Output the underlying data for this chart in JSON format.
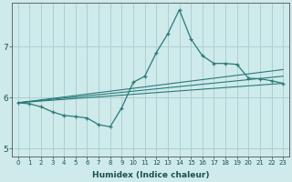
{
  "xlabel": "Humidex (Indice chaleur)",
  "background_color": "#ceeaea",
  "grid_color": "#acd0d0",
  "line_color": "#2a7a7a",
  "xlim": [
    -0.5,
    23.5
  ],
  "ylim": [
    4.85,
    7.85
  ],
  "yticks": [
    5,
    6,
    7
  ],
  "xticks": [
    0,
    1,
    2,
    3,
    4,
    5,
    6,
    7,
    8,
    9,
    10,
    11,
    12,
    13,
    14,
    15,
    16,
    17,
    18,
    19,
    20,
    21,
    22,
    23
  ],
  "main_x": [
    0,
    1,
    2,
    3,
    4,
    5,
    6,
    7,
    8,
    9,
    10,
    11,
    12,
    13,
    14,
    15,
    16,
    17,
    18,
    19,
    20,
    21,
    22,
    23
  ],
  "main_y": [
    5.9,
    5.88,
    5.82,
    5.72,
    5.65,
    5.63,
    5.6,
    5.47,
    5.43,
    5.8,
    6.3,
    6.42,
    6.88,
    7.25,
    7.72,
    7.15,
    6.82,
    6.67,
    6.67,
    6.65,
    6.38,
    6.37,
    6.33,
    6.28
  ],
  "trend1_x": [
    0,
    23
  ],
  "trend1_y": [
    5.9,
    6.28
  ],
  "trend2_x": [
    0,
    23
  ],
  "trend2_y": [
    5.9,
    6.55
  ],
  "trend3_x": [
    0,
    23
  ],
  "trend3_y": [
    5.9,
    6.42
  ]
}
